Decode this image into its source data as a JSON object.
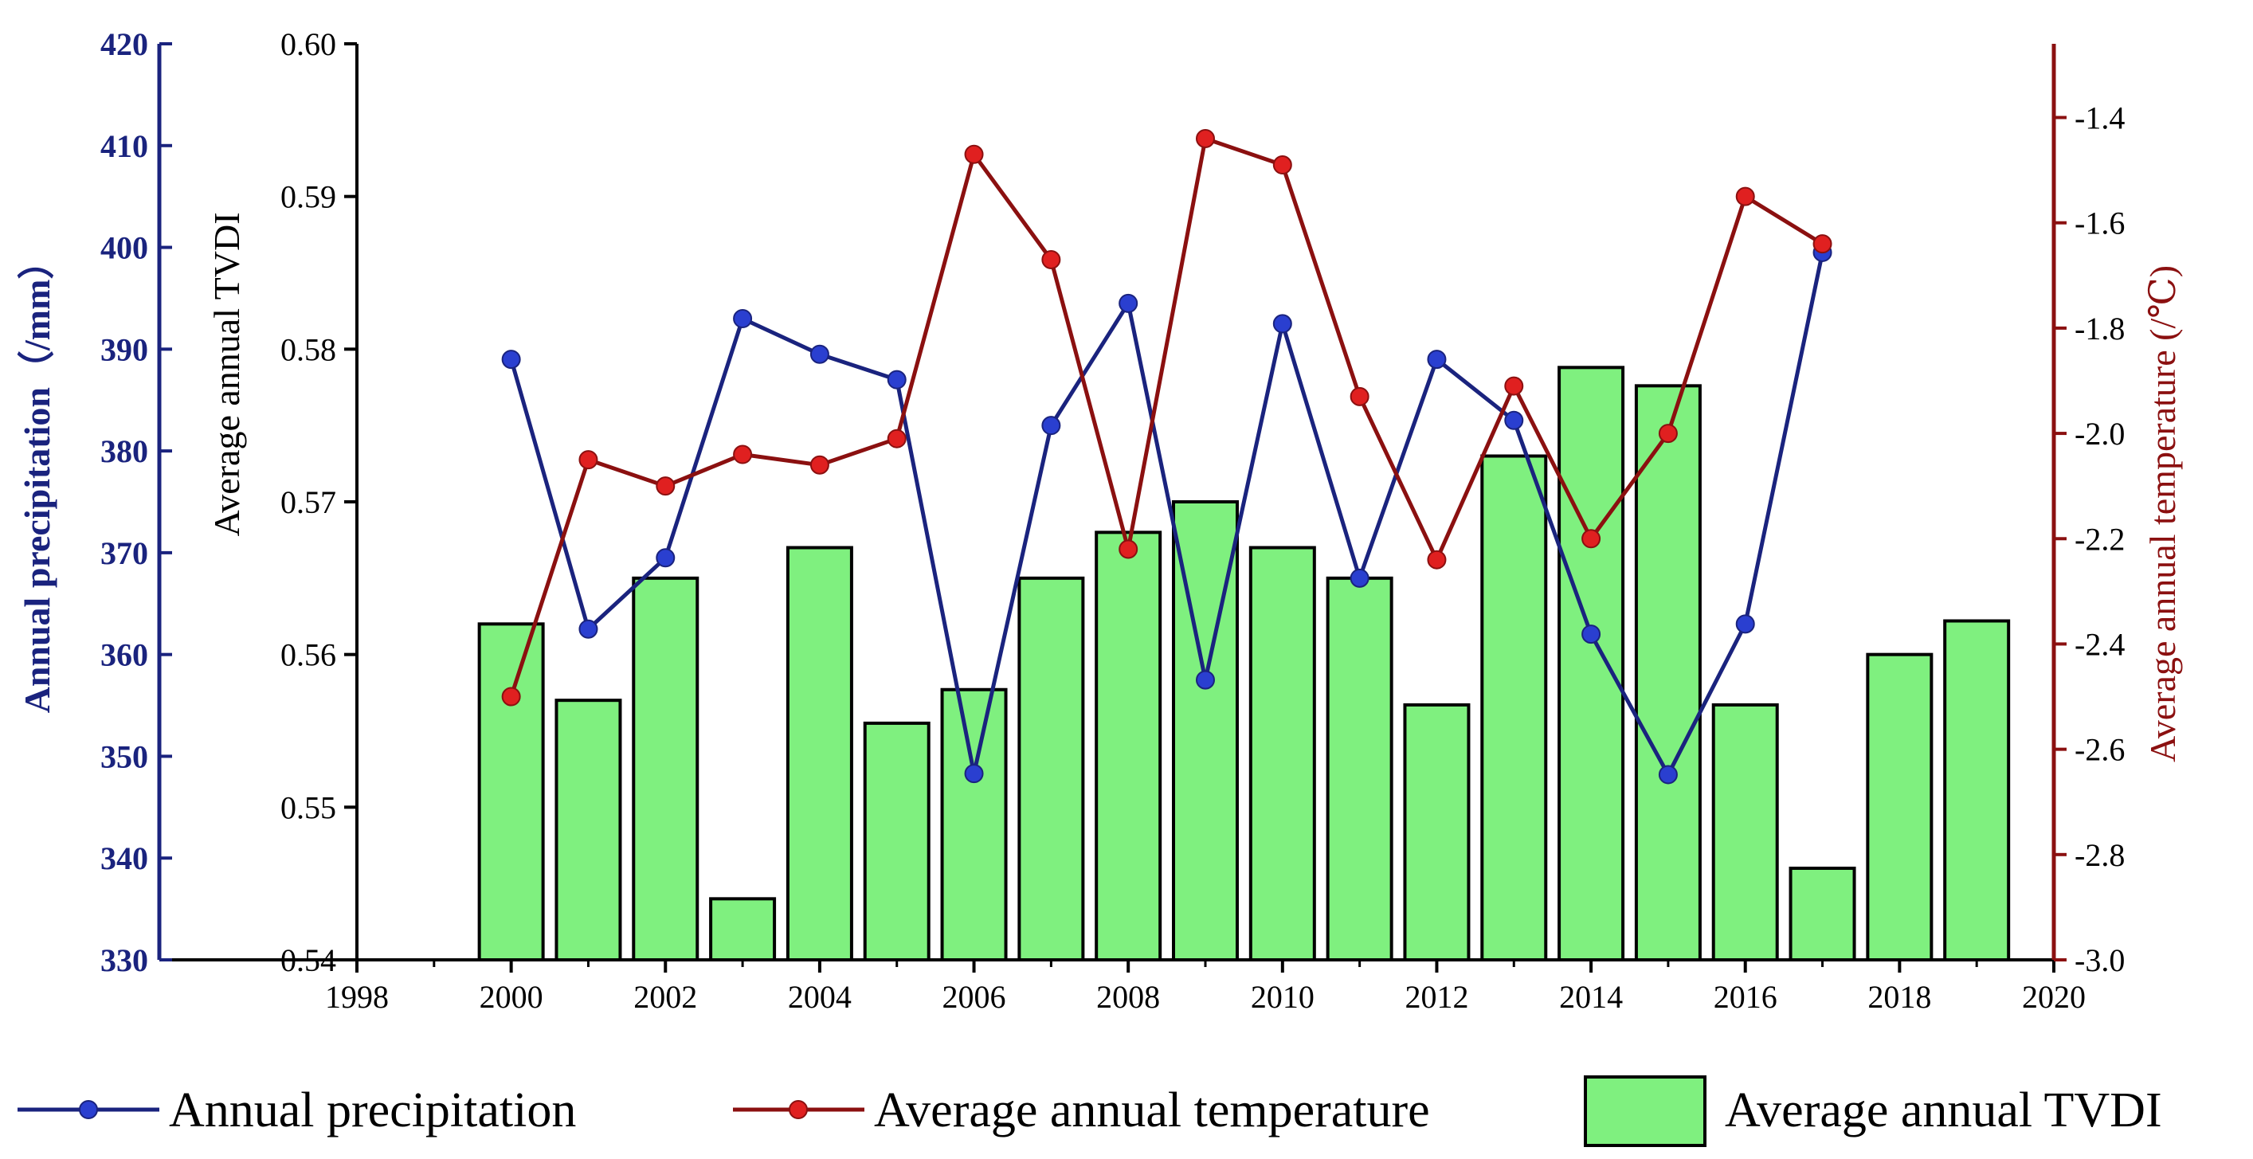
{
  "colors": {
    "precip": "#1a237e",
    "precip_marker": "#2a3fd0",
    "temp": "#8b1010",
    "temp_marker": "#e02020",
    "bar_fill": "#7ff07f",
    "bar_stroke": "#000000",
    "axis": "#000000"
  },
  "chart_data": {
    "type": "bar+line",
    "x": {
      "label": "",
      "range": [
        1998,
        2020
      ],
      "ticks": [
        1998,
        2000,
        2002,
        2004,
        2006,
        2008,
        2010,
        2012,
        2014,
        2016,
        2018,
        2020
      ]
    },
    "y_tvdi": {
      "label": "Average annual TVDI",
      "range": [
        0.54,
        0.6
      ],
      "ticks": [
        0.54,
        0.55,
        0.56,
        0.57,
        0.58,
        0.59,
        0.6
      ],
      "tick_labels": [
        "0.54",
        "0.55",
        "0.56",
        "0.57",
        "0.58",
        "0.59",
        "0.60"
      ]
    },
    "y_precip": {
      "label": "Annual precipitation（/mm）",
      "range": [
        330,
        420
      ],
      "ticks": [
        330,
        340,
        350,
        360,
        370,
        380,
        390,
        400,
        410,
        420
      ]
    },
    "y_temp": {
      "label": "Average annual temperature (/℃)",
      "range": [
        -3.0,
        -1.26
      ],
      "ticks": [
        -3.0,
        -2.8,
        -2.6,
        -2.4,
        -2.2,
        -2.0,
        -1.8,
        -1.6,
        -1.4
      ],
      "tick_labels": [
        "-3.0",
        "-2.8",
        "-2.6",
        "-2.4",
        "-2.2",
        "-2.0",
        "-1.8",
        "-1.6",
        "-1.4"
      ]
    },
    "series": [
      {
        "name": "Average annual TVDI",
        "type": "bar",
        "axis": "y_tvdi",
        "x": [
          2000,
          2001,
          2002,
          2003,
          2004,
          2005,
          2006,
          2007,
          2008,
          2009,
          2010,
          2011,
          2012,
          2013,
          2014,
          2015,
          2016,
          2017,
          2018,
          2019
        ],
        "values": [
          0.562,
          0.557,
          0.565,
          0.544,
          0.567,
          0.5555,
          0.5577,
          0.565,
          0.568,
          0.57,
          0.567,
          0.565,
          0.5567,
          0.573,
          0.5788,
          0.5776,
          0.5567,
          0.546,
          0.56,
          0.5622
        ]
      },
      {
        "name": "Annual precipitation",
        "type": "line",
        "axis": "y_precip",
        "x": [
          2000,
          2001,
          2002,
          2003,
          2004,
          2005,
          2006,
          2007,
          2008,
          2009,
          2010,
          2011,
          2012,
          2013,
          2014,
          2015,
          2016,
          2017
        ],
        "values": [
          389,
          362.5,
          369.5,
          393,
          389.5,
          387,
          348.3,
          382.5,
          394.5,
          357.5,
          392.5,
          367.5,
          389,
          383,
          362,
          348.2,
          363,
          399.5
        ]
      },
      {
        "name": "Average annual temperature",
        "type": "line",
        "axis": "y_temp",
        "x": [
          2000,
          2001,
          2002,
          2003,
          2004,
          2005,
          2006,
          2007,
          2008,
          2009,
          2010,
          2011,
          2012,
          2013,
          2014,
          2015,
          2016,
          2017
        ],
        "values": [
          -2.5,
          -2.05,
          -2.1,
          -2.04,
          -2.06,
          -2.01,
          -1.47,
          -1.67,
          -2.22,
          -1.44,
          -1.49,
          -1.93,
          -2.24,
          -1.91,
          -2.2,
          -2.0,
          -1.55,
          -1.64
        ]
      }
    ],
    "legend": {
      "position": "bottom",
      "items": [
        "Annual precipitation",
        "Average annual temperature",
        "Average annual TVDI"
      ]
    }
  }
}
